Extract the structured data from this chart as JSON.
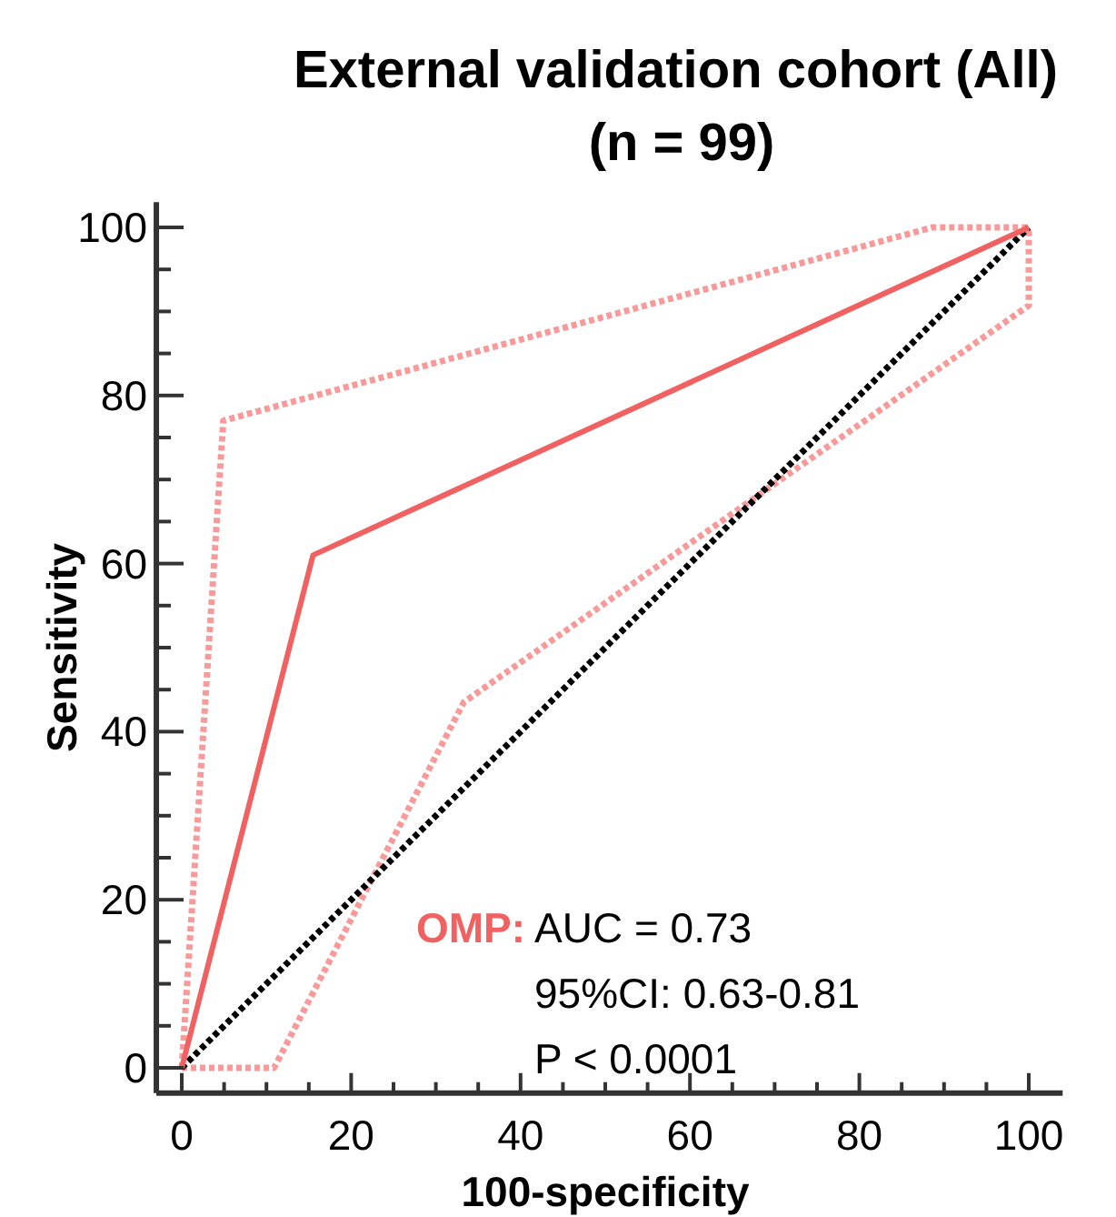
{
  "chart_data": {
    "type": "line",
    "title": "External validation cohort (All)",
    "subtitle": "(n = 99)",
    "xlabel": "100-specificity",
    "ylabel": "Sensitivity",
    "xlim": [
      -3,
      104
    ],
    "ylim": [
      -3,
      103
    ],
    "xticks": [
      0,
      {
        "value": 5,
        "label": null
      },
      20,
      {
        "value": 10,
        "label": null
      },
      {
        "value": 15,
        "label": null
      },
      {
        "value": 25,
        "label": null
      },
      {
        "value": 30,
        "label": null
      },
      {
        "value": 35,
        "label": null
      },
      40,
      {
        "value": 45,
        "label": null
      },
      {
        "value": 50,
        "label": null
      },
      {
        "value": 55,
        "label": null
      },
      60,
      {
        "value": 65,
        "label": null
      },
      {
        "value": 70,
        "label": null
      },
      {
        "value": 75,
        "label": null
      },
      80,
      {
        "value": 85,
        "label": null
      },
      {
        "value": 90,
        "label": null
      },
      {
        "value": 95,
        "label": null
      },
      100
    ],
    "yticks": [
      0,
      {
        "value": 5,
        "label": null
      },
      {
        "value": 10,
        "label": null
      },
      {
        "value": 15,
        "label": null
      },
      20,
      {
        "value": 25,
        "label": null
      },
      {
        "value": 30,
        "label": null
      },
      {
        "value": 35,
        "label": null
      },
      40,
      {
        "value": 45,
        "label": null
      },
      {
        "value": 50,
        "label": null
      },
      {
        "value": 55,
        "label": null
      },
      60,
      {
        "value": 65,
        "label": null
      },
      {
        "value": 70,
        "label": null
      },
      {
        "value": 75,
        "label": null
      },
      80,
      {
        "value": 85,
        "label": null
      },
      {
        "value": 90,
        "label": null
      },
      {
        "value": 95,
        "label": null
      },
      100
    ],
    "grid": false,
    "marker": "none",
    "series": [
      {
        "x": [
          0,
          4.9,
          88.6,
          100
        ],
        "values": [
          0,
          77,
          100,
          100
        ],
        "color": "#f89a9a",
        "line_style": "dotted"
      },
      {
        "x": [
          0,
          10.9,
          33.3,
          100,
          100
        ],
        "values": [
          0,
          0,
          43.5,
          90.7,
          100
        ],
        "color": "#f89a9a",
        "line_style": "dotted"
      },
      {
        "x": [
          0,
          100
        ],
        "values": [
          0,
          100
        ],
        "color": "#000000",
        "line_style": "dotted"
      },
      {
        "name": "OMP:",
        "x": [
          0,
          15.5,
          100
        ],
        "values": [
          0,
          61,
          100
        ],
        "color": "#f06262",
        "line_style": "solid"
      }
    ],
    "annotations": [
      "AUC = 0.73",
      "95%CI: 0.63-0.81",
      "P < 0.0001"
    ]
  }
}
